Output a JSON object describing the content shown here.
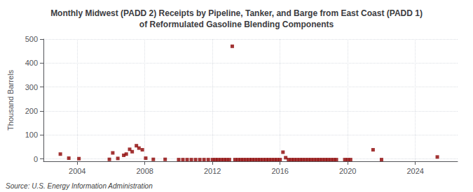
{
  "chart_data": {
    "type": "scatter",
    "title": "Monthly Midwest (PADD 2) Receipts by Pipeline, Tanker, and Barge from East Coast (PADD 1)\nof Reformulated Gasoline Blending Components",
    "ylabel": "Thousand Barrels",
    "annotation": "Source: U.S. Energy Information Administration",
    "color": "#8b0000",
    "marker": "square",
    "grid": true,
    "xlim": [
      2002.0,
      2026.5
    ],
    "xticks": [
      2004,
      2008,
      2012,
      2016,
      2020,
      2024
    ],
    "ylim": [
      -10,
      500
    ],
    "yticks": [
      0,
      100,
      200,
      300,
      400,
      500
    ],
    "x": [
      2003.0,
      2003.5,
      2004.1,
      2005.9,
      2006.1,
      2006.4,
      2006.75,
      2006.9,
      2007.1,
      2007.25,
      2007.5,
      2007.65,
      2007.85,
      2008.05,
      2008.5,
      2009.2,
      2010.0,
      2010.25,
      2010.5,
      2010.75,
      2011.0,
      2011.25,
      2011.5,
      2011.75,
      2012.0,
      2012.17,
      2012.33,
      2012.5,
      2012.67,
      2012.83,
      2013.0,
      2013.17,
      2013.33,
      2013.5,
      2013.67,
      2013.83,
      2014.0,
      2014.17,
      2014.33,
      2014.5,
      2014.67,
      2014.83,
      2015.0,
      2015.17,
      2015.33,
      2015.5,
      2015.67,
      2015.83,
      2016.0,
      2016.17,
      2016.33,
      2016.5,
      2016.67,
      2016.83,
      2017.0,
      2017.17,
      2017.33,
      2017.5,
      2017.67,
      2017.83,
      2018.0,
      2018.17,
      2018.33,
      2018.5,
      2018.67,
      2018.83,
      2019.0,
      2019.17,
      2019.33,
      2019.83,
      2020.0,
      2020.17,
      2021.5,
      2022.0,
      2025.3
    ],
    "values": [
      20,
      3,
      1,
      -2,
      25,
      2,
      15,
      20,
      40,
      30,
      55,
      45,
      38,
      3,
      -2,
      -2,
      -3,
      -3,
      -3,
      -3,
      -3,
      -3,
      -3,
      -3,
      -3,
      -3,
      -3,
      -3,
      -3,
      -3,
      -3,
      470,
      -3,
      -3,
      -3,
      -3,
      -3,
      -3,
      -3,
      -3,
      -3,
      -3,
      -3,
      -3,
      -3,
      -3,
      -3,
      -3,
      -3,
      28,
      5,
      -3,
      -3,
      -3,
      -3,
      -3,
      -3,
      -3,
      -3,
      -3,
      -3,
      -3,
      -3,
      -3,
      -3,
      -3,
      -3,
      -3,
      -3,
      -3,
      -3,
      -3,
      38,
      -3,
      8
    ]
  }
}
